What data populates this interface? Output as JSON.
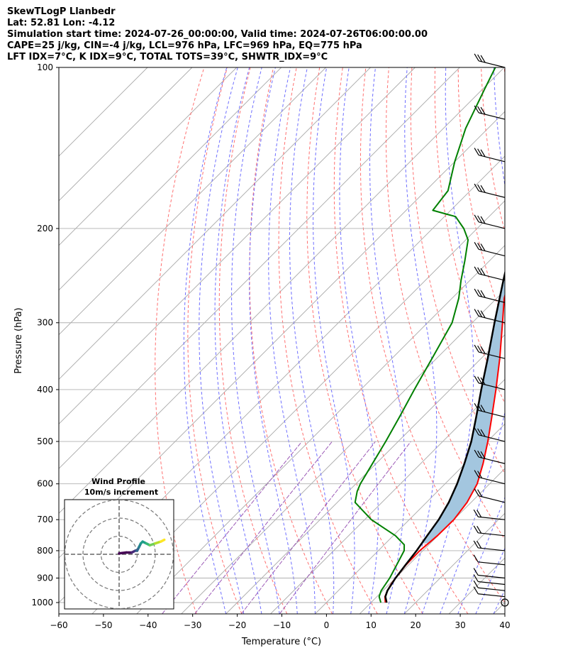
{
  "header": {
    "line1": "SkewTLogP Llanbedr",
    "line2": "Lat: 52.81   Lon: -4.12",
    "line3": "Simulation start time: 2024-07-26_00:00:00, Valid time: 2024-07-26T06:00:00.00",
    "line4": "CAPE=25 j/kg, CIN=-4 j/kg, LCL=976 hPa, LFC=969 hPa, EQ=775 hPa",
    "line5": "LFT IDX=7°C, K IDX=9°C, TOTAL TOTS=39°C, SHWTR_IDX=9°C"
  },
  "chart_data": {
    "type": "line",
    "xlabel": "Temperature (°C)",
    "ylabel": "Pressure (hPa)",
    "xlim": [
      -60,
      40
    ],
    "ylim": [
      1050,
      100
    ],
    "y_scale": "log",
    "skew": "45 degree isotherms",
    "grid": true,
    "x_ticks": [
      "−60",
      "−50",
      "−40",
      "−30",
      "−20",
      "−10",
      "0",
      "10",
      "20",
      "30",
      "40"
    ],
    "y_ticks": [
      "100",
      "200",
      "300",
      "400",
      "500",
      "600",
      "700",
      "800",
      "900",
      "1000"
    ],
    "colors": {
      "temperature": "#ff0000",
      "dewpoint": "#008000",
      "parcel": "#000000",
      "cape_fill": "#a3c6df",
      "isotherm": "#a8a8a8",
      "dry_adiabat": "#ff7070",
      "moist_adiabat": "#6f6fff",
      "mixing_ratio": "#9b59b6"
    },
    "series": [
      {
        "role": "temperature",
        "points": [
          [
            1000,
            13.2
          ],
          [
            975,
            11.8
          ],
          [
            950,
            11.0
          ],
          [
            925,
            10.4
          ],
          [
            900,
            10.0
          ],
          [
            850,
            9.4
          ],
          [
            800,
            9.3
          ],
          [
            750,
            9.9
          ],
          [
            700,
            10.0
          ],
          [
            650,
            9.1
          ],
          [
            600,
            7.2
          ],
          [
            550,
            4.0
          ],
          [
            500,
            0.1
          ],
          [
            450,
            -4.5
          ],
          [
            400,
            -9.7
          ],
          [
            350,
            -15.8
          ],
          [
            300,
            -23.2
          ],
          [
            270,
            -28.3
          ],
          [
            250,
            -31.2
          ],
          [
            230,
            -33.0
          ],
          [
            210,
            -34.2
          ],
          [
            200,
            -36.5
          ],
          [
            180,
            -40.2
          ],
          [
            150,
            -45.5
          ],
          [
            120,
            -51.0
          ],
          [
            100,
            -55.8
          ]
        ]
      },
      {
        "role": "dewpoint",
        "points": [
          [
            1000,
            12.2
          ],
          [
            975,
            10.5
          ],
          [
            950,
            9.6
          ],
          [
            900,
            8.7
          ],
          [
            850,
            7.3
          ],
          [
            800,
            5.8
          ],
          [
            780,
            4.5
          ],
          [
            750,
            0.5
          ],
          [
            700,
            -8.5
          ],
          [
            650,
            -16.0
          ],
          [
            620,
            -18.0
          ],
          [
            600,
            -19.0
          ],
          [
            550,
            -20.8
          ],
          [
            500,
            -22.8
          ],
          [
            450,
            -25.2
          ],
          [
            400,
            -28.0
          ],
          [
            350,
            -31.0
          ],
          [
            300,
            -34.5
          ],
          [
            270,
            -38.5
          ],
          [
            250,
            -42.0
          ],
          [
            230,
            -45.5
          ],
          [
            210,
            -49.5
          ],
          [
            200,
            -53.0
          ],
          [
            190,
            -57.5
          ],
          [
            185,
            -64.0
          ],
          [
            170,
            -65.0
          ],
          [
            150,
            -70.0
          ],
          [
            130,
            -75.0
          ],
          [
            110,
            -79.5
          ],
          [
            100,
            -82.0
          ]
        ]
      },
      {
        "role": "parcel",
        "points": [
          [
            1000,
            13.5
          ],
          [
            975,
            11.9
          ],
          [
            950,
            11.0
          ],
          [
            900,
            10.0
          ],
          [
            850,
            9.3
          ],
          [
            800,
            8.6
          ],
          [
            750,
            7.6
          ],
          [
            700,
            6.6
          ],
          [
            650,
            5.0
          ],
          [
            600,
            2.7
          ],
          [
            550,
            -0.2
          ],
          [
            500,
            -3.6
          ],
          [
            450,
            -8.0
          ],
          [
            400,
            -13.0
          ],
          [
            350,
            -18.5
          ],
          [
            300,
            -25.0
          ],
          [
            250,
            -32.5
          ],
          [
            200,
            -41.5
          ],
          [
            150,
            -50.5
          ],
          [
            120,
            -56.5
          ],
          [
            100,
            -61.0
          ]
        ]
      }
    ],
    "cape_region": "between temperature and parcel curves from EQ to top",
    "wind_barbs": {
      "side": "right",
      "pressures": [
        1000,
        975,
        950,
        925,
        900,
        850,
        800,
        750,
        700,
        650,
        600,
        550,
        500,
        450,
        400,
        350,
        300,
        275,
        250,
        225,
        200,
        175,
        150,
        125,
        100
      ],
      "calm_at_surface": true
    },
    "inset": {
      "title": "Wind Profile",
      "subtitle": "10m/s increment",
      "type": "hodograph",
      "rings_ms": [
        10,
        20,
        30
      ],
      "colormap": "viridis",
      "trace_uv": [
        [
          0,
          0.5
        ],
        [
          4,
          1
        ],
        [
          7,
          1
        ],
        [
          9,
          2
        ],
        [
          10,
          2
        ],
        [
          11,
          4
        ],
        [
          12,
          6
        ],
        [
          13,
          7
        ],
        [
          15,
          6
        ],
        [
          17,
          5
        ],
        [
          20,
          6
        ],
        [
          23,
          7
        ],
        [
          25,
          8
        ]
      ]
    }
  }
}
